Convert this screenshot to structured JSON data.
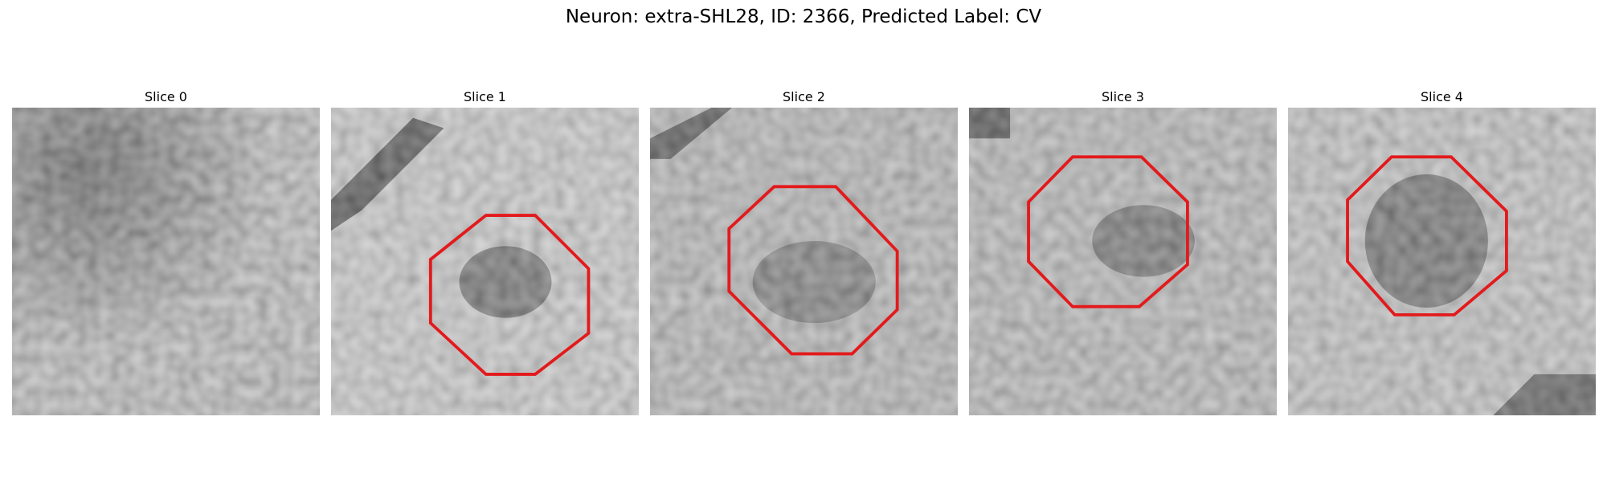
{
  "figure": {
    "title": "Neuron: extra-SHL28, ID: 2366, Predicted Label: CV"
  },
  "panels": [
    {
      "title": "Slice 0",
      "has_outline": false
    },
    {
      "title": "Slice 1",
      "has_outline": true
    },
    {
      "title": "Slice 2",
      "has_outline": true
    },
    {
      "title": "Slice 3",
      "has_outline": true
    },
    {
      "title": "Slice 4",
      "has_outline": true
    }
  ],
  "colors": {
    "outline": "#e31a1c",
    "colormap": "grayscale"
  }
}
